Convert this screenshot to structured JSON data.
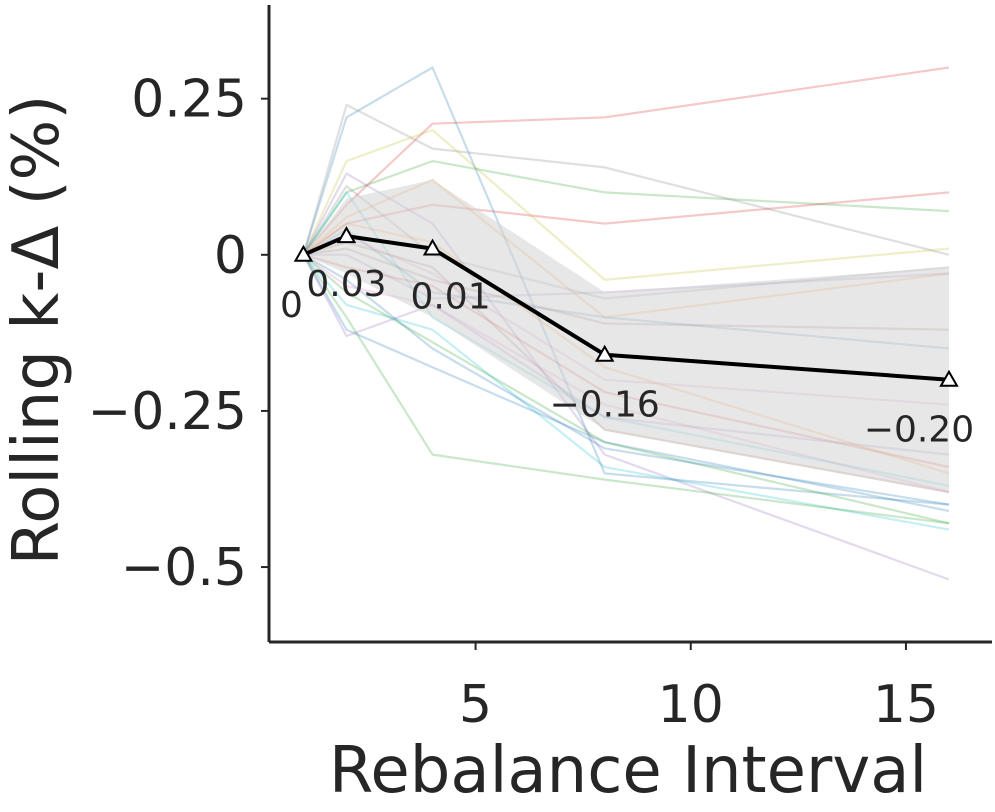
{
  "chart_data": {
    "type": "line",
    "xlabel": "Rebalance Interval",
    "ylabel": "Rolling k-Δ (%)",
    "xlim": [
      0.2,
      17.0
    ],
    "ylim": [
      -0.62,
      0.4
    ],
    "x_ticks": [
      5,
      10,
      15
    ],
    "x_tick_labels": [
      "5",
      "10",
      "15"
    ],
    "y_ticks": [
      0.25,
      0,
      -0.25,
      -0.5
    ],
    "y_tick_labels": [
      "0.25",
      "0",
      "−0.25",
      "−0.5"
    ],
    "grid": false,
    "x": [
      1,
      2,
      4,
      8,
      16
    ],
    "mean": {
      "name": "mean",
      "values": [
        0,
        0.03,
        0.01,
        -0.16,
        -0.2
      ],
      "labels": [
        "0",
        "0.03",
        "0.01",
        "−0.16",
        "−0.20"
      ],
      "marker": "triangle-open",
      "color": "#000000"
    },
    "band": {
      "upper": [
        0,
        0.09,
        0.12,
        -0.06,
        -0.02
      ],
      "lower": [
        0,
        -0.03,
        -0.1,
        -0.28,
        -0.38
      ],
      "color": "#d3d3d3"
    },
    "series": [
      {
        "color": "#d62728",
        "values": [
          0,
          0.08,
          0.21,
          0.22,
          0.3
        ]
      },
      {
        "color": "#d62728",
        "values": [
          0,
          0.05,
          0.08,
          0.05,
          0.1
        ]
      },
      {
        "color": "#2ca02c",
        "values": [
          0,
          0.1,
          0.15,
          0.1,
          0.07
        ]
      },
      {
        "color": "#1f77b4",
        "values": [
          0,
          0.22,
          0.3,
          -0.35,
          -0.4
        ]
      },
      {
        "color": "#7f7f7f",
        "values": [
          0,
          0.24,
          0.17,
          0.14,
          0.0
        ]
      },
      {
        "color": "#bcbd22",
        "values": [
          0,
          0.15,
          0.2,
          -0.04,
          0.01
        ]
      },
      {
        "color": "#9467bd",
        "values": [
          0,
          0.13,
          0.05,
          -0.32,
          -0.52
        ]
      },
      {
        "color": "#ff7f0e",
        "values": [
          0,
          0.06,
          0.12,
          -0.1,
          -0.03
        ]
      },
      {
        "color": "#8c564b",
        "values": [
          0,
          0.02,
          -0.02,
          -0.28,
          -0.38
        ]
      },
      {
        "color": "#e377c2",
        "values": [
          0,
          -0.05,
          -0.08,
          -0.24,
          -0.38
        ]
      },
      {
        "color": "#17becf",
        "values": [
          0,
          -0.08,
          -0.12,
          -0.34,
          -0.44
        ]
      },
      {
        "color": "#2ca02c",
        "values": [
          0,
          -0.1,
          -0.32,
          -0.36,
          -0.43
        ]
      },
      {
        "color": "#1f77b4",
        "values": [
          0,
          -0.12,
          -0.18,
          -0.3,
          -0.41
        ]
      },
      {
        "color": "#7f7f7f",
        "values": [
          0,
          0.11,
          0.0,
          -0.07,
          -0.02
        ]
      },
      {
        "color": "#d62728",
        "values": [
          0,
          -0.02,
          -0.05,
          -0.22,
          -0.34
        ]
      },
      {
        "color": "#9467bd",
        "values": [
          0,
          -0.13,
          -0.08,
          -0.26,
          -0.32
        ]
      },
      {
        "color": "#1f77b4",
        "values": [
          0,
          0.04,
          -0.06,
          -0.1,
          -0.15
        ]
      },
      {
        "color": "#8c564b",
        "values": [
          0,
          0.01,
          -0.04,
          -0.11,
          -0.12
        ]
      },
      {
        "color": "#ff7f0e",
        "values": [
          0,
          0.05,
          0.02,
          -0.18,
          -0.35
        ]
      },
      {
        "color": "#2ca02c",
        "values": [
          0,
          -0.06,
          -0.14,
          -0.3,
          -0.43
        ]
      },
      {
        "color": "#9467bd",
        "values": [
          0,
          0.0,
          -0.07,
          -0.06,
          -0.03
        ]
      },
      {
        "color": "#17becf",
        "values": [
          0,
          0.1,
          -0.1,
          -0.26,
          -0.37
        ]
      },
      {
        "color": "#e377c2",
        "values": [
          0,
          0.03,
          -0.03,
          -0.2,
          -0.24
        ]
      },
      {
        "color": "#1f77b4",
        "values": [
          0,
          -0.04,
          -0.15,
          -0.31,
          -0.4
        ]
      }
    ]
  }
}
